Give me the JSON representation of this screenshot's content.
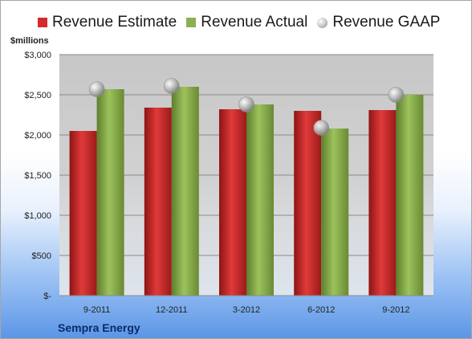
{
  "chart_data": {
    "type": "bar",
    "unit_label": "$millions",
    "company": "Sempra Energy",
    "categories": [
      "9-2011",
      "12-2011",
      "3-2012",
      "6-2012",
      "9-2012"
    ],
    "series": [
      {
        "name": "Revenue Estimate",
        "kind": "bar",
        "color": "#d42a2a",
        "values": [
          2050,
          2340,
          2320,
          2300,
          2310
        ]
      },
      {
        "name": "Revenue Actual",
        "kind": "bar",
        "color": "#8cb050",
        "values": [
          2570,
          2600,
          2380,
          2080,
          2500
        ]
      },
      {
        "name": "Revenue GAAP",
        "kind": "marker",
        "color": "#b8b8b8",
        "values": [
          2570,
          2610,
          2380,
          2090,
          2500
        ]
      }
    ],
    "ylim": [
      0,
      3000
    ],
    "yticks": [
      0,
      500,
      1000,
      1500,
      2000,
      2500,
      3000
    ],
    "ytick_labels": [
      "$-",
      "$500",
      "$1,000",
      "$1,500",
      "$2,000",
      "$2,500",
      "$3,000"
    ],
    "grid": true,
    "legend_position": "top"
  }
}
